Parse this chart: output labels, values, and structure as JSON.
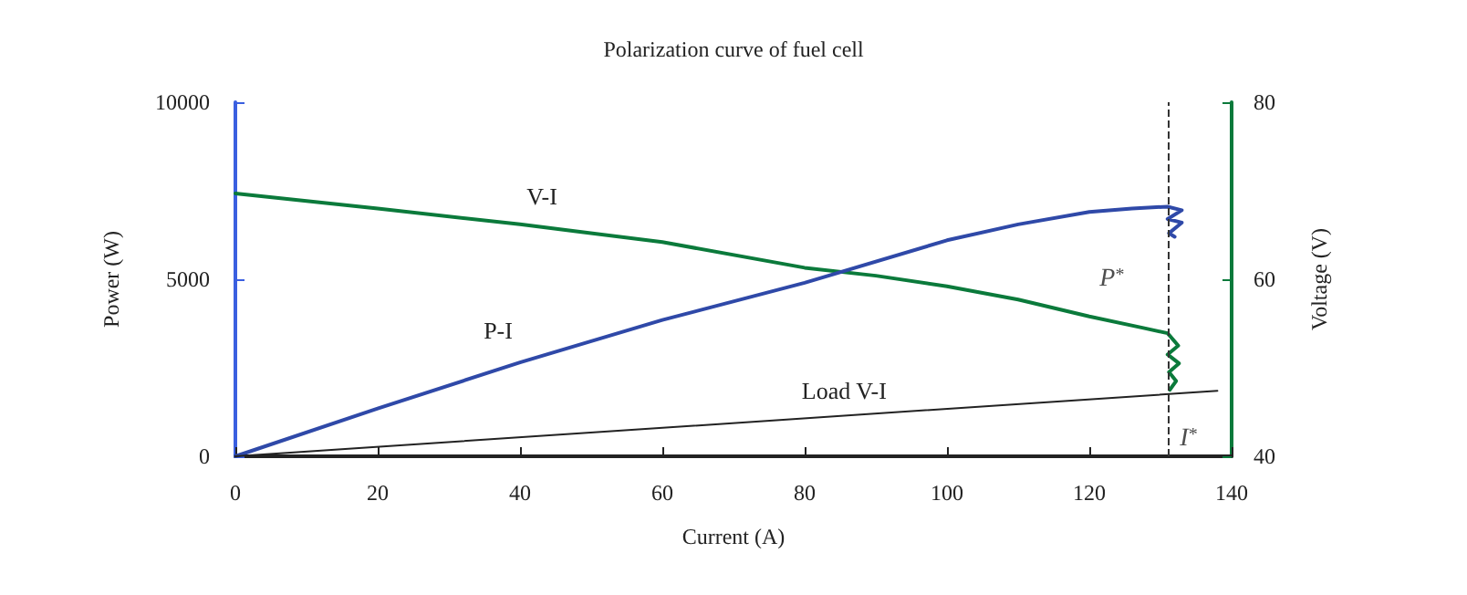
{
  "chart_data": {
    "type": "line",
    "title": "Polarization curve of fuel cell",
    "xlabel": "Current (A)",
    "ylabel": "Power (W)",
    "y2label": "Voltage (V)",
    "xlim": [
      0,
      140
    ],
    "xticks": [
      0,
      20,
      40,
      60,
      80,
      100,
      120,
      140
    ],
    "ylim": [
      0,
      10000
    ],
    "yticks": [
      0,
      5000,
      10000
    ],
    "y2lim": [
      40,
      80
    ],
    "y2ticks": [
      40,
      60,
      80
    ],
    "grid": false,
    "legend": false,
    "marker": "none",
    "line_style": "solid",
    "series": [
      {
        "name": "V-I",
        "color": "#0b7a3b",
        "axis": "y2",
        "x": [
          0,
          20,
          40,
          60,
          80,
          90,
          100,
          110,
          120,
          127.6,
          131,
          132.5,
          131,
          132.6,
          131.2,
          132.2,
          131.3
        ],
        "values": [
          69.7,
          68.0,
          66.2,
          64.2,
          61.3,
          60.4,
          59.2,
          57.7,
          55.8,
          54.5,
          53.9,
          52.5,
          51.5,
          50.5,
          49.5,
          48.5,
          47.5
        ]
      },
      {
        "name": "P-I",
        "color": "#2f49a8",
        "x": [
          0,
          20,
          40,
          60,
          80,
          100,
          110,
          120,
          126,
          131,
          133,
          131,
          133,
          131.2,
          132
        ],
        "values": [
          0,
          1350,
          2650,
          3850,
          4900,
          6100,
          6550,
          6900,
          7000,
          7050,
          6950,
          6700,
          6600,
          6300,
          6200
        ]
      },
      {
        "name": "Load V-I",
        "color": "#222222",
        "axis": "y2",
        "x": [
          0,
          138
        ],
        "values": [
          40,
          47.4
        ]
      }
    ],
    "ref_lines": [
      {
        "axis": "x",
        "value": 131.2,
        "color": "#333333",
        "line_style": "dashed"
      }
    ],
    "annotations": [
      "P$^{*}$",
      "I$^{*}$"
    ]
  }
}
